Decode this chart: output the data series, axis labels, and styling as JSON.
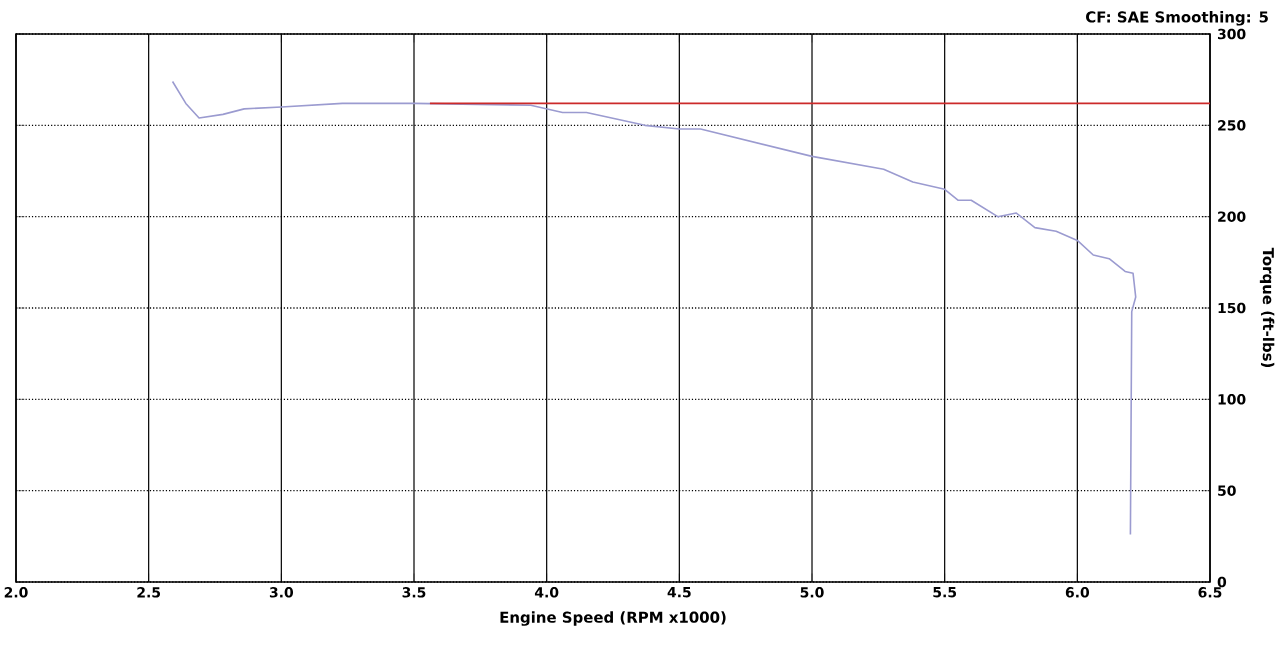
{
  "chart_data": {
    "type": "line",
    "xlabel": "Engine Speed (RPM x1000)",
    "ylabel": "Torque (ft-lbs)",
    "annotations": [
      "CF: SAE  Smoothing: 5"
    ],
    "xlim": [
      2.0,
      6.5
    ],
    "ylim": [
      0,
      300
    ],
    "xticks": [
      {
        "value": 2.0,
        "label": "2.0"
      },
      {
        "value": 2.5,
        "label": "2.5"
      },
      {
        "value": 3.0,
        "label": "3.0"
      },
      {
        "value": 3.5,
        "label": "3.5"
      },
      {
        "value": 4.0,
        "label": "4.0"
      },
      {
        "value": 4.5,
        "label": "4.5"
      },
      {
        "value": 5.0,
        "label": "5.0"
      },
      {
        "value": 5.5,
        "label": "5.5"
      },
      {
        "value": 6.0,
        "label": "6.0"
      },
      {
        "value": 6.5,
        "label": "6.5"
      }
    ],
    "yticks": [
      0,
      50,
      100,
      150,
      200,
      250,
      300
    ],
    "grid": true,
    "series": [
      {
        "color": "#9b9bd0",
        "x": [
          2.59,
          2.64,
          2.69,
          2.78,
          2.86,
          3.0,
          3.23,
          3.5,
          3.94,
          4.06,
          4.15,
          4.37,
          4.5,
          4.58,
          5.0,
          5.27,
          5.38,
          5.5,
          5.55,
          5.6,
          5.7,
          5.77,
          5.84,
          5.92,
          6.0,
          6.06,
          6.12,
          6.18,
          6.21,
          6.22,
          6.205,
          6.2
        ],
        "values": [
          274,
          262,
          254,
          256,
          259,
          260,
          262,
          262,
          261,
          257,
          257,
          250,
          248,
          248,
          233,
          226,
          219,
          215,
          209,
          209,
          200,
          202,
          194,
          192,
          187,
          179,
          177,
          170,
          169,
          156,
          148,
          26
        ]
      },
      {
        "color": "#cc2a2a",
        "x": [
          3.56,
          6.5
        ],
        "values": [
          262,
          262
        ]
      }
    ]
  }
}
